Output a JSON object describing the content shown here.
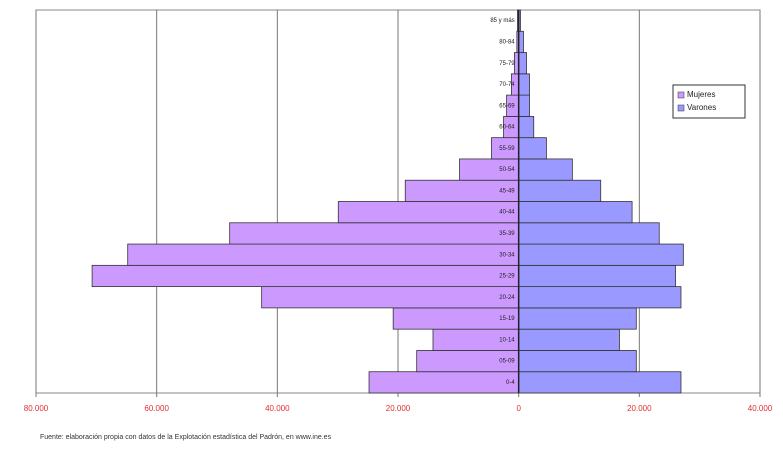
{
  "chart_data": {
    "type": "pyramid",
    "categories": [
      "0-4",
      "05-09",
      "10-14",
      "15-19",
      "20-24",
      "25-29",
      "30-34",
      "35-39",
      "40-44",
      "45-49",
      "50-54",
      "55-59",
      "60-64",
      "65-69",
      "70-74",
      "75-79",
      "80-84",
      "85 y más"
    ],
    "series": [
      {
        "name": "Mujeres",
        "color": "#cc99ff",
        "values": [
          -24800,
          -16900,
          -14200,
          -20800,
          -42600,
          -70700,
          -64800,
          -47900,
          -29900,
          -18800,
          -9800,
          -4500,
          -2500,
          -2000,
          -1200,
          -700,
          -300,
          -200
        ]
      },
      {
        "name": "Varones",
        "color": "#9999ff",
        "values": [
          26900,
          19500,
          16700,
          19500,
          26900,
          26000,
          27300,
          23300,
          18800,
          13600,
          8900,
          4600,
          2500,
          1800,
          1800,
          1300,
          800,
          300
        ]
      }
    ],
    "xlim": [
      -80000,
      40000
    ],
    "xticks": [
      {
        "value": -80000,
        "label": "80.000"
      },
      {
        "value": -60000,
        "label": "60.000"
      },
      {
        "value": -40000,
        "label": "40.000"
      },
      {
        "value": -20000,
        "label": "20.000"
      },
      0,
      {
        "value": 20000,
        "label": "20.000"
      },
      {
        "value": 40000,
        "label": "40.000"
      }
    ],
    "grid": true,
    "legend": "upper right",
    "footnote": "Fuente: elaboración propia con datos de la Explotación estadística del Padrón, en www.ine.es"
  }
}
